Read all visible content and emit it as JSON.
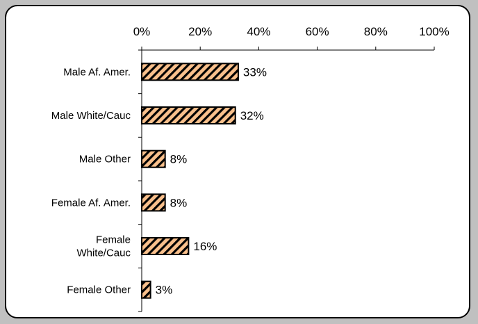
{
  "chart_data": {
    "type": "bar",
    "orientation": "horizontal",
    "categories": [
      "Male Af. Amer.",
      "Male White/Cauc",
      "Male Other",
      "Female Af. Amer.",
      "Female White/Cauc",
      "Female Other"
    ],
    "category_display": [
      [
        "Male Af. Amer."
      ],
      [
        "Male White/Cauc"
      ],
      [
        "Male Other"
      ],
      [
        "Female Af. Amer."
      ],
      [
        "Female",
        "White/Cauc"
      ],
      [
        "Female Other"
      ]
    ],
    "values": [
      33,
      32,
      8,
      8,
      16,
      3
    ],
    "data_labels": [
      "33%",
      "32%",
      "8%",
      "8%",
      "16%",
      "3%"
    ],
    "xlim": [
      0,
      100
    ],
    "x_ticks": [
      0,
      20,
      40,
      60,
      80,
      100
    ],
    "x_tick_labels": [
      "0%",
      "20%",
      "40%",
      "60%",
      "80%",
      "100%"
    ],
    "axis_position": "top",
    "grid": false,
    "legend": "none",
    "bar_fill": "#f9c08c",
    "bar_hatch": "#000000",
    "bar_edge": "#000000",
    "background": "#c0c0c0"
  }
}
